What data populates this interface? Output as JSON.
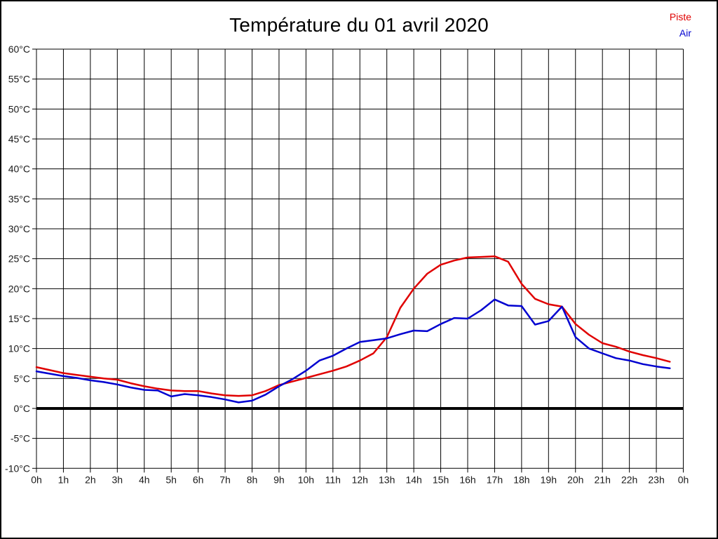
{
  "page": {
    "background_color": "#ffffff",
    "border_color": "#000000"
  },
  "chart_data": {
    "type": "line",
    "title": "Température du 01 avril 2020",
    "xlabel": "",
    "ylabel": "",
    "grid": true,
    "x_unit": "hours",
    "xlim": [
      0,
      24
    ],
    "ylim": [
      -10,
      60
    ],
    "y_tick_step": 5,
    "x_tick_labels": [
      "0h",
      "1h",
      "2h",
      "3h",
      "4h",
      "5h",
      "6h",
      "7h",
      "8h",
      "9h",
      "10h",
      "11h",
      "12h",
      "13h",
      "14h",
      "15h",
      "16h",
      "17h",
      "18h",
      "19h",
      "20h",
      "21h",
      "22h",
      "23h",
      "0h"
    ],
    "y_tick_labels": [
      "60°C",
      "55°C",
      "50°C",
      "45°C",
      "40°C",
      "35°C",
      "30°C",
      "25°C",
      "20°C",
      "15°C",
      "10°C",
      "5°C",
      "0°C",
      "-5°C",
      "-10°C"
    ],
    "y_tick_values": [
      60,
      55,
      50,
      45,
      40,
      35,
      30,
      25,
      20,
      15,
      10,
      5,
      0,
      -5,
      -10
    ],
    "zero_line": {
      "value": 0,
      "color": "#000000",
      "width": 4
    },
    "grid_color": "#000000",
    "axis_text_color": "#1a1a1a",
    "legend_position": "top-right",
    "x": [
      0,
      0.5,
      1,
      1.5,
      2,
      2.5,
      3,
      3.5,
      4,
      4.5,
      5,
      5.5,
      6,
      6.5,
      7,
      7.5,
      8,
      8.5,
      9,
      9.5,
      10,
      10.5,
      11,
      11.5,
      12,
      12.5,
      13,
      13.5,
      14,
      14.5,
      15,
      15.5,
      16,
      16.5,
      17,
      17.5,
      18,
      18.5,
      19,
      19.5,
      20,
      20.5,
      21,
      21.5,
      22,
      22.5,
      23,
      23.5
    ],
    "series": [
      {
        "name": "Piste",
        "color": "#e00000",
        "values": [
          6.9,
          6.4,
          5.9,
          5.6,
          5.3,
          5.0,
          4.8,
          4.2,
          3.7,
          3.3,
          3.0,
          2.9,
          2.9,
          2.5,
          2.2,
          2.1,
          2.2,
          2.9,
          3.9,
          4.5,
          5.1,
          5.7,
          6.3,
          7.0,
          8.0,
          9.2,
          11.9,
          16.8,
          20.0,
          22.5,
          24.0,
          24.7,
          25.2,
          25.3,
          25.4,
          24.5,
          20.8,
          18.3,
          17.4,
          17.0,
          14.1,
          12.3,
          10.9,
          10.3,
          9.5,
          8.9,
          8.4,
          7.8
        ]
      },
      {
        "name": "Air",
        "color": "#0000d0",
        "values": [
          6.2,
          5.8,
          5.4,
          5.1,
          4.7,
          4.4,
          4.0,
          3.5,
          3.1,
          3.0,
          2.0,
          2.4,
          2.2,
          1.9,
          1.5,
          1.0,
          1.3,
          2.3,
          3.7,
          4.9,
          6.3,
          8.0,
          8.8,
          10.0,
          11.1,
          11.4,
          11.7,
          12.4,
          13.0,
          12.9,
          14.1,
          15.1,
          15.0,
          16.4,
          18.2,
          17.2,
          17.1,
          14.0,
          14.6,
          17.0,
          11.9,
          10.0,
          9.2,
          8.4,
          8.0,
          7.4,
          7.0,
          6.7
        ]
      }
    ]
  },
  "legend": {
    "items": [
      {
        "label": "Piste",
        "color": "#e00000"
      },
      {
        "label": "Air",
        "color": "#0000d0"
      }
    ]
  }
}
